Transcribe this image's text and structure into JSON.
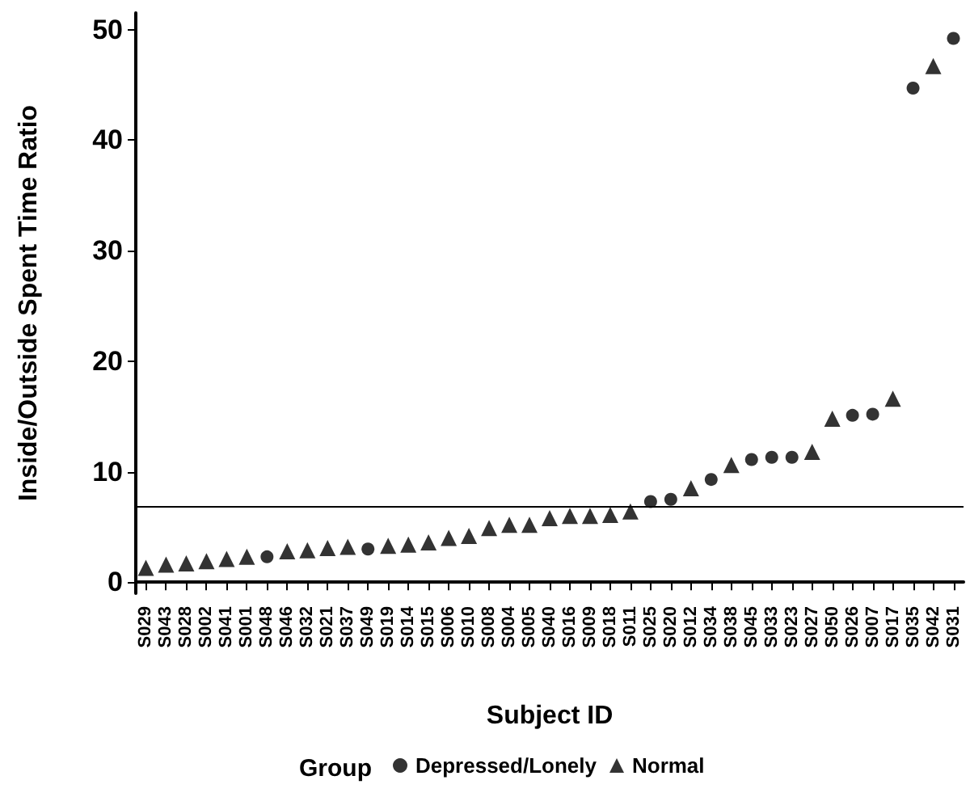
{
  "chart_data": {
    "type": "scatter",
    "xlabel": "Subject ID",
    "ylabel": "Inside/Outside Spent Time Ratio",
    "legend_title": "Group",
    "categories": [
      "S029",
      "S043",
      "S028",
      "S002",
      "S041",
      "S001",
      "S048",
      "S046",
      "S032",
      "S021",
      "S037",
      "S049",
      "S019",
      "S014",
      "S015",
      "S006",
      "S010",
      "S008",
      "S004",
      "S005",
      "S040",
      "S016",
      "S009",
      "S018",
      "S011",
      "S025",
      "S020",
      "S012",
      "S034",
      "S038",
      "S045",
      "S033",
      "S023",
      "S027",
      "S050",
      "S026",
      "S007",
      "S017",
      "S035",
      "S042",
      "S031"
    ],
    "series": [
      {
        "name": "Depressed/Lonely",
        "color": "#000000",
        "marker": "circle",
        "values": [
          null,
          null,
          null,
          null,
          null,
          null,
          2.3,
          null,
          null,
          null,
          null,
          3.0,
          null,
          null,
          null,
          null,
          null,
          null,
          null,
          null,
          null,
          null,
          null,
          null,
          null,
          7.3,
          7.5,
          null,
          9.3,
          null,
          11.1,
          11.3,
          11.3,
          null,
          null,
          15.1,
          15.2,
          null,
          44.7,
          null,
          49.2
        ]
      },
      {
        "name": "Normal",
        "color": "#000000",
        "marker": "triangle",
        "values": [
          1.3,
          1.6,
          1.7,
          1.9,
          2.1,
          2.3,
          null,
          2.8,
          2.9,
          3.1,
          3.2,
          null,
          3.3,
          3.4,
          3.6,
          4.0,
          4.2,
          4.9,
          5.2,
          5.2,
          5.8,
          6.0,
          6.0,
          6.1,
          6.4,
          null,
          null,
          8.5,
          null,
          10.6,
          null,
          null,
          null,
          11.8,
          14.8,
          null,
          null,
          16.6,
          null,
          46.7,
          null
        ]
      }
    ],
    "ylim": [
      -1,
      51.5
    ],
    "yticks": [
      0,
      10,
      20,
      30,
      40,
      50
    ],
    "ref_lines": [
      {
        "axis": "y",
        "value": 6.8,
        "color": "#000000"
      }
    ],
    "legend": "bottom",
    "grid": false
  }
}
